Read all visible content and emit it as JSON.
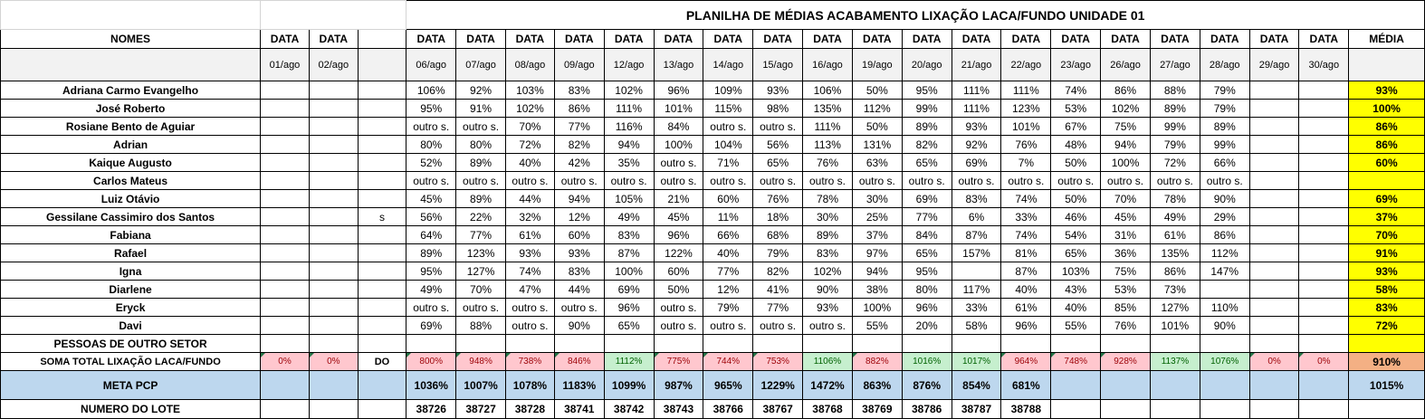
{
  "title": "PLANILHA DE MÉDIAS ACABAMENTO LIXAÇÃO LACA/FUNDO UNIDADE 01",
  "header": {
    "names_label": "NOMES",
    "data_label": "DATA",
    "media_label": "MÉDIA",
    "dates": [
      "01/ago",
      "02/ago",
      "",
      "06/ago",
      "07/ago",
      "08/ago",
      "09/ago",
      "12/ago",
      "13/ago",
      "14/ago",
      "15/ago",
      "16/ago",
      "19/ago",
      "20/ago",
      "21/ago",
      "22/ago",
      "23/ago",
      "26/ago",
      "27/ago",
      "28/ago",
      "29/ago",
      "30/ago"
    ],
    "data_labels": [
      "DATA",
      "DATA",
      "",
      "DATA",
      "DATA",
      "DATA",
      "DATA",
      "DATA",
      "DATA",
      "DATA",
      "DATA",
      "DATA",
      "DATA",
      "DATA",
      "DATA",
      "DATA",
      "DATA",
      "DATA",
      "DATA",
      "DATA",
      "DATA",
      "DATA"
    ]
  },
  "rows": [
    {
      "name": "Adriana Carmo Evangelho",
      "values": [
        "",
        "",
        "",
        "106%",
        "92%",
        "103%",
        "83%",
        "102%",
        "96%",
        "109%",
        "93%",
        "106%",
        "50%",
        "95%",
        "111%",
        "111%",
        "74%",
        "86%",
        "88%",
        "79%",
        "",
        ""
      ],
      "avg": "93%"
    },
    {
      "name": "José Roberto",
      "values": [
        "",
        "",
        "",
        "95%",
        "91%",
        "102%",
        "86%",
        "111%",
        "101%",
        "115%",
        "98%",
        "135%",
        "112%",
        "99%",
        "111%",
        "123%",
        "53%",
        "102%",
        "89%",
        "79%",
        "",
        ""
      ],
      "avg": "100%"
    },
    {
      "name": "Rosiane Bento de Aguiar",
      "values": [
        "",
        "",
        "",
        "outro s.",
        "outro s.",
        "70%",
        "77%",
        "116%",
        "84%",
        "outro s.",
        "outro s.",
        "111%",
        "50%",
        "89%",
        "93%",
        "101%",
        "67%",
        "75%",
        "99%",
        "89%",
        "",
        ""
      ],
      "avg": "86%"
    },
    {
      "name": "Adrian",
      "values": [
        "",
        "",
        "",
        "80%",
        "80%",
        "72%",
        "82%",
        "94%",
        "100%",
        "104%",
        "56%",
        "113%",
        "131%",
        "82%",
        "92%",
        "76%",
        "48%",
        "94%",
        "79%",
        "99%",
        "",
        ""
      ],
      "avg": "86%"
    },
    {
      "name": "Kaique Augusto",
      "values": [
        "",
        "",
        "",
        "52%",
        "89%",
        "40%",
        "42%",
        "35%",
        "outro s.",
        "71%",
        "65%",
        "76%",
        "63%",
        "65%",
        "69%",
        "7%",
        "50%",
        "100%",
        "72%",
        "66%",
        "",
        ""
      ],
      "avg": "60%"
    },
    {
      "name": "Carlos Mateus",
      "values": [
        "",
        "",
        "",
        "outro s.",
        "outro s.",
        "outro s.",
        "outro s.",
        "outro s.",
        "outro s.",
        "outro s.",
        "outro s.",
        "outro s.",
        "outro s.",
        "outro s.",
        "outro s.",
        "outro s.",
        "outro s.",
        "outro s.",
        "outro s.",
        "outro s.",
        "",
        ""
      ],
      "avg": ""
    },
    {
      "name": "Luiz Otávio",
      "values": [
        "",
        "",
        "",
        "45%",
        "89%",
        "44%",
        "94%",
        "105%",
        "21%",
        "60%",
        "76%",
        "78%",
        "30%",
        "69%",
        "83%",
        "74%",
        "50%",
        "70%",
        "78%",
        "90%",
        "",
        ""
      ],
      "avg": "69%"
    },
    {
      "name": "Gessilane Cassimiro dos Santos",
      "values": [
        "",
        "",
        "s",
        "56%",
        "22%",
        "32%",
        "12%",
        "49%",
        "45%",
        "11%",
        "18%",
        "30%",
        "25%",
        "77%",
        "6%",
        "33%",
        "46%",
        "45%",
        "49%",
        "29%",
        "",
        ""
      ],
      "avg": "37%"
    },
    {
      "name": "Fabiana",
      "values": [
        "",
        "",
        "",
        "64%",
        "77%",
        "61%",
        "60%",
        "83%",
        "96%",
        "66%",
        "68%",
        "89%",
        "37%",
        "84%",
        "87%",
        "74%",
        "54%",
        "31%",
        "61%",
        "86%",
        "",
        ""
      ],
      "avg": "70%"
    },
    {
      "name": "Rafael",
      "values": [
        "",
        "",
        "",
        "89%",
        "123%",
        "93%",
        "93%",
        "87%",
        "122%",
        "40%",
        "79%",
        "83%",
        "97%",
        "65%",
        "157%",
        "81%",
        "65%",
        "36%",
        "135%",
        "112%",
        "",
        ""
      ],
      "avg": "91%"
    },
    {
      "name": "Igna",
      "values": [
        "",
        "",
        "",
        "95%",
        "127%",
        "74%",
        "83%",
        "100%",
        "60%",
        "77%",
        "82%",
        "102%",
        "94%",
        "95%",
        "",
        "87%",
        "103%",
        "75%",
        "86%",
        "147%",
        "",
        ""
      ],
      "avg": "93%"
    },
    {
      "name": "Diarlene",
      "values": [
        "",
        "",
        "",
        "49%",
        "70%",
        "47%",
        "44%",
        "69%",
        "50%",
        "12%",
        "41%",
        "90%",
        "38%",
        "80%",
        "117%",
        "40%",
        "43%",
        "53%",
        "73%",
        "",
        "",
        ""
      ],
      "avg": "58%"
    },
    {
      "name": "Eryck",
      "values": [
        "",
        "",
        "",
        "outro s.",
        "outro s.",
        "outro s.",
        "outro s.",
        "96%",
        "outro s.",
        "79%",
        "77%",
        "93%",
        "100%",
        "96%",
        "33%",
        "61%",
        "40%",
        "85%",
        "127%",
        "110%",
        "",
        ""
      ],
      "avg": "83%"
    },
    {
      "name": "Davi",
      "values": [
        "",
        "",
        "",
        "69%",
        "88%",
        "outro s.",
        "90%",
        "65%",
        "outro s.",
        "outro s.",
        "outro s.",
        "outro s.",
        "55%",
        "20%",
        "58%",
        "96%",
        "55%",
        "76%",
        "101%",
        "90%",
        "",
        ""
      ],
      "avg": "72%"
    }
  ],
  "outro_setor_label": "PESSOAS DE OUTRO SETOR",
  "soma": {
    "label": "SOMA TOTAL LIXAÇÃO LACA/FUNDO",
    "values": [
      "0%",
      "0%",
      "DO",
      "800%",
      "948%",
      "738%",
      "846%",
      "1112%",
      "775%",
      "744%",
      "753%",
      "1106%",
      "882%",
      "1016%",
      "1017%",
      "964%",
      "748%",
      "928%",
      "1137%",
      "1076%",
      "0%",
      "0%"
    ],
    "status": [
      "red",
      "red",
      "none",
      "red",
      "red",
      "red",
      "red",
      "green",
      "red",
      "red",
      "red",
      "green",
      "red",
      "green",
      "green",
      "red",
      "red",
      "red",
      "green",
      "green",
      "red",
      "red"
    ],
    "total": "910%"
  },
  "meta": {
    "label": "META PCP",
    "values": [
      "",
      "",
      "",
      "1036%",
      "1007%",
      "1078%",
      "1183%",
      "1099%",
      "987%",
      "965%",
      "1229%",
      "1472%",
      "863%",
      "876%",
      "854%",
      "681%",
      "",
      "",
      "",
      "",
      "",
      ""
    ],
    "total": "1015%"
  },
  "lote": {
    "label": "NUMERO DO LOTE",
    "values": [
      "",
      "",
      "",
      "38726",
      "38727",
      "38728",
      "38741",
      "38742",
      "38743",
      "38766",
      "38767",
      "38768",
      "38769",
      "38786",
      "38787",
      "38788",
      "",
      "",
      "",
      "",
      "",
      ""
    ]
  },
  "colors": {
    "avg_highlight": "#ffff00",
    "sum_red_bg": "#ffc7ce",
    "sum_red_text": "#9c0006",
    "sum_green_bg": "#c6efce",
    "sum_green_text": "#006100",
    "sum_total_bg": "#f4b084",
    "meta_bg": "#bdd7ee"
  }
}
